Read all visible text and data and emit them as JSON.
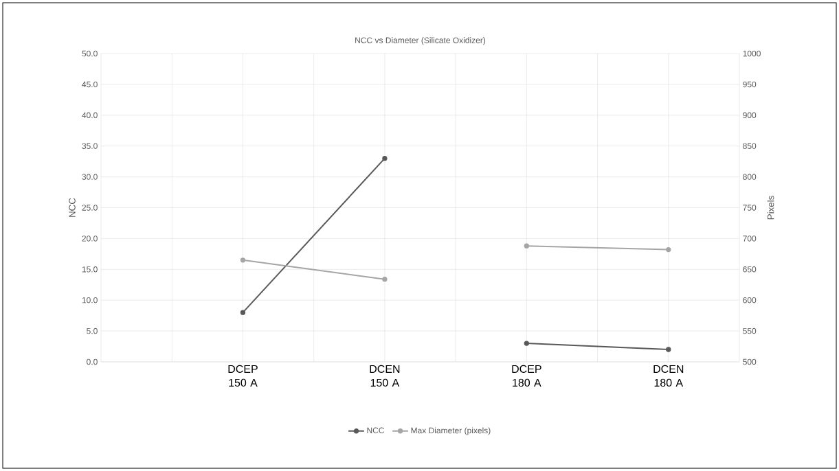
{
  "chart_data": {
    "type": "line",
    "title": "NCC vs Diameter (Silicate Oxidizer)",
    "ylabel": "NCC",
    "y2label": "Pixels",
    "categories": [
      "DCEP 150 A",
      "DCEN 150 A",
      "DCEP 180 A",
      "DCEN 180 A"
    ],
    "ylim": [
      0,
      50
    ],
    "yticks": [
      {
        "value": 0,
        "label": "0.0"
      },
      {
        "value": 5,
        "label": "5.0"
      },
      {
        "value": 10,
        "label": "10.0"
      },
      {
        "value": 15,
        "label": "15.0"
      },
      {
        "value": 20,
        "label": "20.0"
      },
      {
        "value": 25,
        "label": "25.0"
      },
      {
        "value": 30,
        "label": "30.0"
      },
      {
        "value": 35,
        "label": "35.0"
      },
      {
        "value": 40,
        "label": "40.0"
      },
      {
        "value": 45,
        "label": "45.0"
      },
      {
        "value": 50,
        "label": "50.0"
      }
    ],
    "y2lim": [
      500,
      1000
    ],
    "y2ticks": [
      500,
      550,
      600,
      650,
      700,
      750,
      800,
      850,
      900,
      950,
      1000
    ],
    "series": [
      {
        "name": "NCC",
        "color": "#595959",
        "values": [
          8,
          33,
          null,
          null
        ]
      },
      {
        "name": "Max Diameter (pixels)",
        "color": "#a5a5a5",
        "axis": "y2",
        "values": [
          665,
          634,
          null,
          null
        ]
      },
      {
        "color": "#595959",
        "values": [
          null,
          null,
          3,
          2
        ]
      },
      {
        "color": "#a5a5a5",
        "axis": "y2",
        "values": [
          null,
          null,
          688,
          682
        ]
      }
    ],
    "marker": "circle",
    "grid": true,
    "legend": "bottom"
  }
}
